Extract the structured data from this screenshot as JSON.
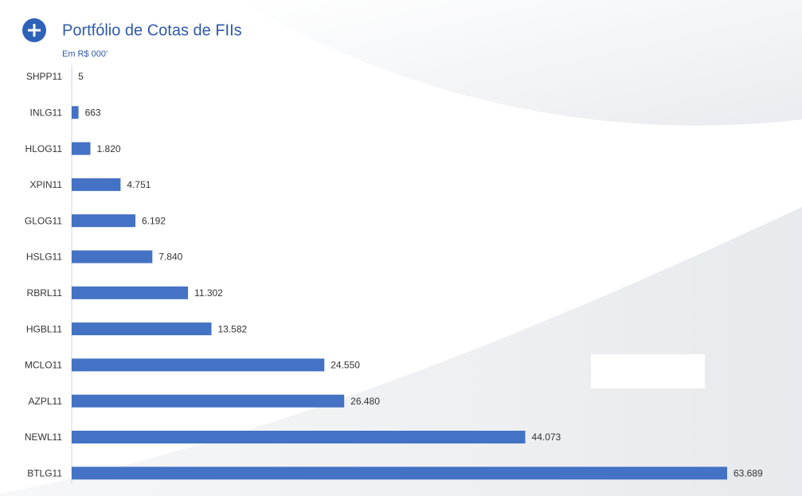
{
  "chart_data": {
    "type": "bar",
    "orientation": "horizontal",
    "title": "Portfólio de Cotas de FIIs",
    "subtitle": "Em R$ 000’",
    "categories": [
      "SHPP11",
      "INLG11",
      "HLOG11",
      "XPIN11",
      "GLOG11",
      "HSLG11",
      "RBRL11",
      "HGBL11",
      "MCLO11",
      "AZPL11",
      "NEWL11",
      "BTLG11"
    ],
    "values": [
      5,
      663,
      1820,
      4751,
      6192,
      7840,
      11302,
      13582,
      24550,
      26480,
      44073,
      63689
    ],
    "value_labels": [
      "5",
      "663",
      "1.820",
      "4.751",
      "6.192",
      "7.840",
      "11.302",
      "13.582",
      "24.550",
      "26.480",
      "44.073",
      "63.689"
    ],
    "color": "#4472c4"
  }
}
